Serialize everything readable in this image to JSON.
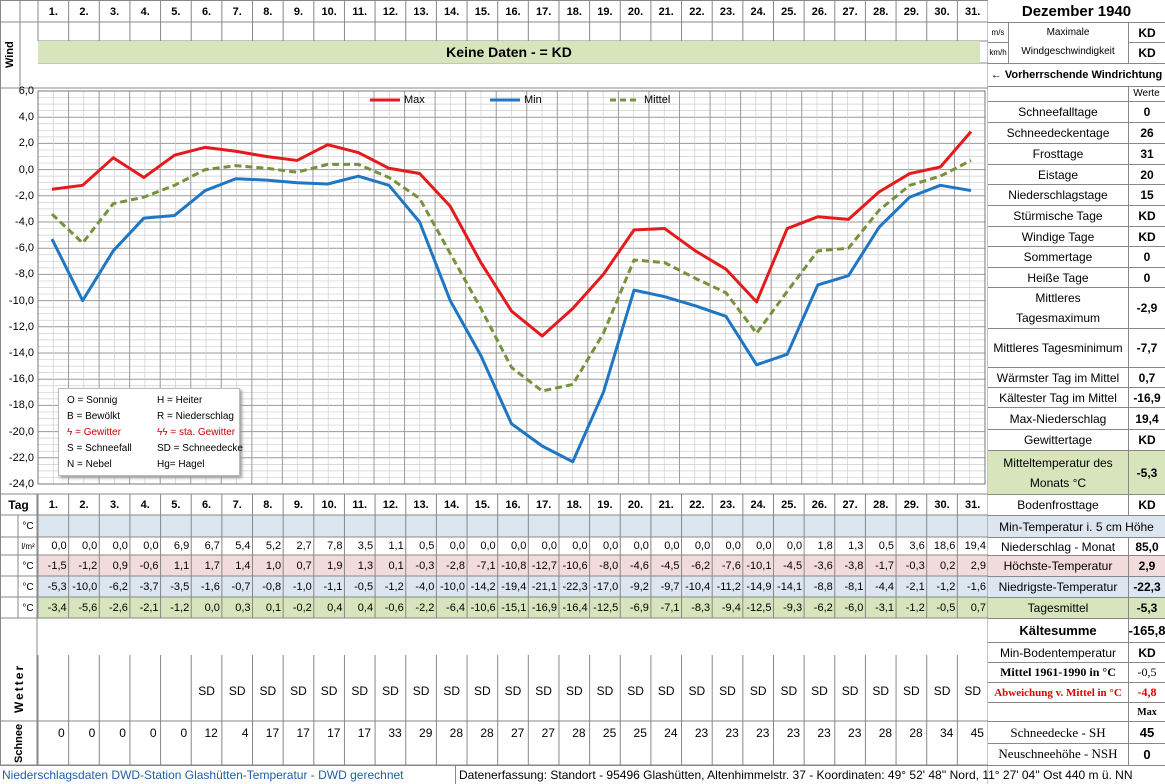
{
  "header": {
    "wind_label": "Wind",
    "no_data": "Keine Daten -  = KD",
    "month_title": "Dezember 1940",
    "unit_ms": "m/s",
    "unit_kmh": "km/h",
    "max_wind_line1": "Maximale",
    "max_wind_line2": "Windgeschwindigkeit",
    "max_wind_ms": "KD",
    "max_wind_kmh": "KD",
    "dominant_wind": "← Vorherrschende Windrichtung",
    "werte": "Werte"
  },
  "days": [
    "1.",
    "2.",
    "3.",
    "4.",
    "5.",
    "6.",
    "7.",
    "8.",
    "9.",
    "10.",
    "11.",
    "12.",
    "13.",
    "14.",
    "15.",
    "16.",
    "17.",
    "18.",
    "19.",
    "20.",
    "21.",
    "22.",
    "23.",
    "24.",
    "25.",
    "26.",
    "27.",
    "28.",
    "29.",
    "30.",
    "31."
  ],
  "tag_label": "Tag",
  "stats": [
    {
      "label": "Schneefalltage",
      "value": "0"
    },
    {
      "label": "Schneedeckentage",
      "value": "26"
    },
    {
      "label": "Frosttage",
      "value": "31"
    },
    {
      "label": "Eistage",
      "value": "20"
    },
    {
      "label": "Niederschlagstage",
      "value": "15"
    },
    {
      "label": "Stürmische Tage",
      "value": "KD"
    },
    {
      "label": "Windige Tage",
      "value": "KD"
    },
    {
      "label": "Sommertage",
      "value": "0"
    },
    {
      "label": "Heiße Tage",
      "value": "0"
    },
    {
      "label": "Mittleres Tagesmaximum",
      "value": "-2,9"
    },
    {
      "label": "Mittleres Tagesminimum",
      "value": "-7,7"
    },
    {
      "label": "Wärmster Tag im Mittel",
      "value": "0,7"
    },
    {
      "label": "Kältester Tag im Mittel",
      "value": "-16,9"
    },
    {
      "label": "Max-Niederschlag",
      "value": "19,4"
    },
    {
      "label": "Gewittertage",
      "value": "KD"
    },
    {
      "label": "Mitteltemperatur des Monats °C",
      "value": "-5,3"
    },
    {
      "label": "Bodenfrosttage",
      "value": "KD"
    }
  ],
  "table": {
    "unit_c": "°C",
    "unit_lm2": "l/m²",
    "rows": [
      {
        "key": "ground_min",
        "label": "Min-Temperatur i. 5 cm Höhe",
        "value": "",
        "bg": "#dce6f1"
      },
      {
        "key": "precip",
        "label": "Niederschlag - Monat",
        "value": "85,0",
        "bg": "#ffffff"
      },
      {
        "key": "max",
        "label": "Höchste-Temperatur",
        "value": "2,9",
        "bg": "#f2dcdb"
      },
      {
        "key": "min",
        "label": "Niedrigste-Temperatur",
        "value": "-22,3",
        "bg": "#dce6f1"
      },
      {
        "key": "mean",
        "label": "Tagesmittel",
        "value": "-5,3",
        "bg": "#d7e4bc"
      }
    ],
    "precip": [
      "0,0",
      "0,0",
      "0,0",
      "0,0",
      "6,9",
      "6,7",
      "5,4",
      "5,2",
      "2,7",
      "7,8",
      "3,5",
      "1,1",
      "0,5",
      "0,0",
      "0,0",
      "0,0",
      "0,0",
      "0,0",
      "0,0",
      "0,0",
      "0,0",
      "0,0",
      "0,0",
      "0,0",
      "0,0",
      "1,8",
      "1,3",
      "0,5",
      "3,6",
      "18,6",
      "19,4"
    ],
    "max": [
      "-1,5",
      "-1,2",
      "0,9",
      "-0,6",
      "1,1",
      "1,7",
      "1,4",
      "1,0",
      "0,7",
      "1,9",
      "1,3",
      "0,1",
      "-0,3",
      "-2,8",
      "-7,1",
      "-10,8",
      "-12,7",
      "-10,6",
      "-8,0",
      "-4,6",
      "-4,5",
      "-6,2",
      "-7,6",
      "-10,1",
      "-4,5",
      "-3,6",
      "-3,8",
      "-1,7",
      "-0,3",
      "0,2",
      "2,9"
    ],
    "min": [
      "-5,3",
      "-10,0",
      "-6,2",
      "-3,7",
      "-3,5",
      "-1,6",
      "-0,7",
      "-0,8",
      "-1,0",
      "-1,1",
      "-0,5",
      "-1,2",
      "-4,0",
      "-10,0",
      "-14,2",
      "-19,4",
      "-21,1",
      "-22,3",
      "-17,0",
      "-9,2",
      "-9,7",
      "-10,4",
      "-11,2",
      "-14,9",
      "-14,1",
      "-8,8",
      "-8,1",
      "-4,4",
      "-2,1",
      "-1,2",
      "-1,6"
    ],
    "mean": [
      "-3,4",
      "-5,6",
      "-2,6",
      "-2,1",
      "-1,2",
      "0,0",
      "0,3",
      "0,1",
      "-0,2",
      "0,4",
      "0,4",
      "-0,6",
      "-2,2",
      "-6,4",
      "-10,6",
      "-15,1",
      "-16,9",
      "-16,4",
      "-12,5",
      "-6,9",
      "-7,1",
      "-8,3",
      "-9,4",
      "-12,5",
      "-9,3",
      "-6,2",
      "-6,0",
      "-3,1",
      "-1,2",
      "-0,5",
      "0,7"
    ]
  },
  "lower_side": {
    "kaeltesumme_label": "Kältesumme",
    "kaeltesumme_value": "-165,8",
    "min_boden_label": "Min-Bodentemperatur",
    "min_boden_value": "KD",
    "mittel_label": "Mittel 1961-1990 in °C",
    "mittel_value": "-0,5",
    "abw_label": "Abweichung v. Mittel in °C",
    "abw_value": "-4,8",
    "max_label": "Max",
    "sh_label": "Schneedecke -  SH",
    "sh_value": "45",
    "nsh_label": "Neuschneehöhe - NSH",
    "nsh_value": "0"
  },
  "wetter_label": "Wetter",
  "wetter": [
    "",
    "",
    "",
    "",
    "",
    "SD",
    "SD",
    "SD",
    "SD",
    "SD",
    "SD",
    "SD",
    "SD",
    "SD",
    "SD",
    "SD",
    "SD",
    "SD",
    "SD",
    "SD",
    "SD",
    "SD",
    "SD",
    "SD",
    "SD",
    "SD",
    "SD",
    "SD",
    "SD",
    "SD",
    "SD"
  ],
  "schnee_label": "Schnee",
  "schnee": [
    "0",
    "0",
    "0",
    "0",
    "0",
    "12",
    "4",
    "17",
    "17",
    "17",
    "17",
    "33",
    "29",
    "28",
    "28",
    "27",
    "27",
    "28",
    "25",
    "25",
    "24",
    "23",
    "23",
    "23",
    "23",
    "23",
    "23",
    "28",
    "28",
    "34",
    "45"
  ],
  "legend_symbols": [
    [
      "O = Sonnig",
      "H = Heiter"
    ],
    [
      "B = Bewölkt",
      "R = Niederschlag"
    ],
    [
      "ϟ = Gewitter",
      "ϟϟ = sta. Gewitter"
    ],
    [
      "S = Schneefall",
      "SD = Schneedecke"
    ],
    [
      "N = Nebel",
      "Hg= Hagel"
    ]
  ],
  "footer": {
    "left": "Niederschlagsdaten DWD-Station Glashütten-Temperatur -  DWD gerechnet",
    "right": "Datenerfassung:  Standort -  95496  Glashütten, Altenhimmelstr. 37 - Koordinaten:  49° 52' 48'' Nord,   11° 27' 04'' Ost   440 m ü. NN"
  },
  "chart_data": {
    "type": "line",
    "x": [
      1,
      2,
      3,
      4,
      5,
      6,
      7,
      8,
      9,
      10,
      11,
      12,
      13,
      14,
      15,
      16,
      17,
      18,
      19,
      20,
      21,
      22,
      23,
      24,
      25,
      26,
      27,
      28,
      29,
      30,
      31
    ],
    "ylim": [
      -24,
      6
    ],
    "yticks": [
      "6,0",
      "4,0",
      "2,0",
      "0,0",
      "-2,0",
      "-4,0",
      "-6,0",
      "-8,0",
      "-10,0",
      "-12,0",
      "-14,0",
      "-16,0",
      "-18,0",
      "-20,0",
      "-22,0",
      "-24,0"
    ],
    "grid": true,
    "legend_position": "top",
    "series": [
      {
        "name": "Max",
        "color": "#e41a1c",
        "dash": false,
        "values": [
          -1.5,
          -1.2,
          0.9,
          -0.6,
          1.1,
          1.7,
          1.4,
          1.0,
          0.7,
          1.9,
          1.3,
          0.1,
          -0.3,
          -2.8,
          -7.1,
          -10.8,
          -12.7,
          -10.6,
          -8.0,
          -4.6,
          -4.5,
          -6.2,
          -7.6,
          -10.1,
          -4.5,
          -3.6,
          -3.8,
          -1.7,
          -0.3,
          0.2,
          2.9
        ]
      },
      {
        "name": "Min",
        "color": "#1f77c4",
        "dash": false,
        "values": [
          -5.3,
          -10.0,
          -6.2,
          -3.7,
          -3.5,
          -1.6,
          -0.7,
          -0.8,
          -1.0,
          -1.1,
          -0.5,
          -1.2,
          -4.0,
          -10.0,
          -14.2,
          -19.4,
          -21.1,
          -22.3,
          -17.0,
          -9.2,
          -9.7,
          -10.4,
          -11.2,
          -14.9,
          -14.1,
          -8.8,
          -8.1,
          -4.4,
          -2.1,
          -1.2,
          -1.6
        ]
      },
      {
        "name": "Mittel",
        "color": "#76923c",
        "dash": true,
        "values": [
          -3.4,
          -5.6,
          -2.6,
          -2.1,
          -1.2,
          0.0,
          0.3,
          0.1,
          -0.2,
          0.4,
          0.4,
          -0.6,
          -2.2,
          -6.4,
          -10.6,
          -15.1,
          -16.9,
          -16.4,
          -12.5,
          -6.9,
          -7.1,
          -8.3,
          -9.4,
          -12.5,
          -9.3,
          -6.2,
          -6.0,
          -3.1,
          -1.2,
          -0.5,
          0.7
        ]
      }
    ]
  }
}
